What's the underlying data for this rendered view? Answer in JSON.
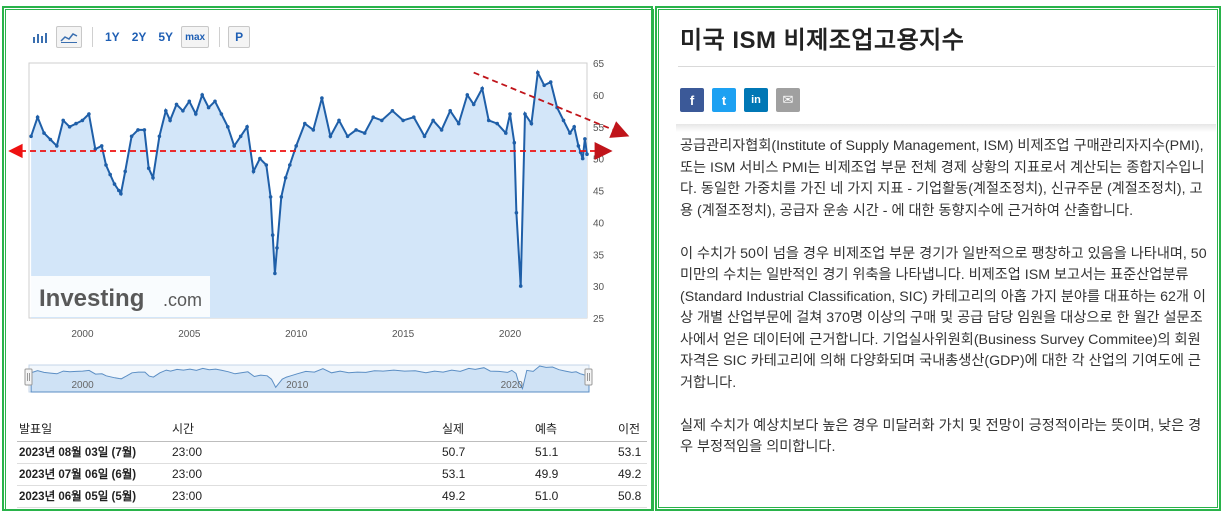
{
  "toolbar": {
    "ranges": [
      "1Y",
      "2Y",
      "5Y",
      "max"
    ],
    "print_label": "P"
  },
  "chart_data": {
    "type": "area",
    "x_range": [
      1997.5,
      2023.6
    ],
    "ylim": [
      25,
      65
    ],
    "y_ticks": [
      "65",
      "60",
      "55",
      "50",
      "45",
      "40",
      "35",
      "30",
      "25"
    ],
    "x_ticks": [
      "2000",
      "2005",
      "2010",
      "2015",
      "2020"
    ],
    "navigator_labels": [
      "2000",
      "2010",
      "2020"
    ],
    "watermark": {
      "brand": "Investing",
      "suffix": ".com"
    },
    "series": [
      {
        "x": [
          1997.6,
          1997.9,
          1998.2,
          1998.5,
          1998.8,
          1999.1,
          1999.4,
          1999.7,
          2000.0,
          2000.3,
          2000.6,
          2000.9,
          2001.1,
          2001.3,
          2001.5,
          2001.7,
          2001.8,
          2002.0,
          2002.3,
          2002.6,
          2002.9,
          2003.1,
          2003.3,
          2003.6,
          2003.9,
          2004.1,
          2004.4,
          2004.7,
          2005.0,
          2005.3,
          2005.6,
          2005.9,
          2006.2,
          2006.5,
          2006.8,
          2007.1,
          2007.4,
          2007.7,
          2008.0,
          2008.3,
          2008.6,
          2008.8,
          2008.9,
          2009.0,
          2009.1,
          2009.3,
          2009.5,
          2009.7,
          2010.0,
          2010.4,
          2010.8,
          2011.2,
          2011.6,
          2012.0,
          2012.4,
          2012.8,
          2013.2,
          2013.6,
          2014.0,
          2014.5,
          2015.0,
          2015.5,
          2016.0,
          2016.4,
          2016.8,
          2017.2,
          2017.6,
          2018.0,
          2018.3,
          2018.7,
          2019.0,
          2019.4,
          2019.8,
          2020.0,
          2020.2,
          2020.3,
          2020.5,
          2020.7,
          2021.0,
          2021.3,
          2021.6,
          2021.9,
          2022.2,
          2022.5,
          2022.8,
          2023.0,
          2023.2,
          2023.3,
          2023.4,
          2023.5,
          2023.6
        ],
        "y": [
          53.5,
          56.5,
          54.0,
          53.0,
          52.0,
          56.0,
          55.0,
          55.5,
          56.0,
          57.0,
          51.5,
          52.0,
          49.0,
          47.5,
          46.0,
          45.0,
          44.5,
          48.0,
          53.5,
          54.5,
          54.5,
          48.5,
          47.0,
          53.5,
          57.5,
          56.0,
          58.5,
          57.5,
          59.0,
          57.0,
          60.0,
          58.0,
          59.0,
          57.0,
          55.0,
          52.0,
          53.5,
          55.0,
          48.0,
          50.0,
          49.0,
          44.0,
          38.0,
          32.0,
          36.0,
          44.0,
          47.0,
          49.0,
          52.0,
          55.5,
          54.5,
          59.5,
          53.5,
          56.0,
          53.5,
          54.5,
          54.0,
          56.5,
          56.0,
          57.5,
          56.0,
          56.5,
          53.5,
          56.0,
          54.5,
          57.5,
          55.5,
          60.0,
          58.5,
          61.0,
          56.0,
          55.5,
          54.0,
          57.0,
          52.5,
          41.5,
          30.0,
          57.0,
          55.5,
          63.5,
          61.5,
          62.0,
          58.0,
          56.0,
          54.0,
          55.0,
          52.0,
          51.0,
          50.0,
          53.1,
          50.7
        ]
      }
    ]
  },
  "table": {
    "headers": {
      "date": "발표일",
      "time": "시간",
      "actual": "실제",
      "forecast": "예측",
      "previous": "이전"
    },
    "rows": [
      {
        "date": "2023년 08월 03일 (7월)",
        "time": "23:00",
        "actual": "50.7",
        "forecast": "51.1",
        "previous": "53.1"
      },
      {
        "date": "2023년 07월 06일 (6월)",
        "time": "23:00",
        "actual": "53.1",
        "forecast": "49.9",
        "previous": "49.2"
      },
      {
        "date": "2023년 06월 05일 (5월)",
        "time": "23:00",
        "actual": "49.2",
        "forecast": "51.0",
        "previous": "50.8"
      }
    ]
  },
  "article": {
    "title": "미국 ISM 비제조업고용지수",
    "share": {
      "facebook": "f",
      "twitter": "t",
      "linkedin": "in",
      "email": "✉"
    },
    "paragraphs": [
      "공급관리자협회(Institute of Supply Management, ISM) 비제조업 구매관리자지수(PMI), 또는 ISM 서비스 PMI는 비제조업 부문 전체 경제 상황의 지표로서 계산되는 종합지수입니다. 동일한 가중치를 가진 네 가지 지표 - 기업활동(계절조정치), 신규주문 (계절조정치), 고용 (계절조정치), 공급자 운송 시간 - 에 대한 동향지수에 근거하여 산출합니다.",
      "이 수치가 50이 넘을 경우 비제조업 부문 경기가 일반적으로 팽창하고 있음을 나타내며, 50 미만의 수치는 일반적인 경기 위축을 나타냅니다. 비제조업 ISM 보고서는 표준산업분류(Standard Industrial Classification, SIC) 카테고리의 아홉 가지 분야를 대표하는 62개 이상 개별 산업부문에 걸쳐 370명 이상의 구매 및 공급 담당 임원을 대상으로 한 월간 설문조사에서 얻은 데이터에 근거합니다. 기업실사위원회(Business Survey Commitee)의 회원자격은 SIC 카테고리에 의해 다양화되며 국내총생산(GDP)에 대한 각 산업의 기여도에 근거합니다.",
      "실제 수치가 예상치보다 높은 경우 미달러화 가치 및 전망이 긍정적이라는 뜻이며, 낮은 경우 부정적임을 의미합니다."
    ]
  }
}
